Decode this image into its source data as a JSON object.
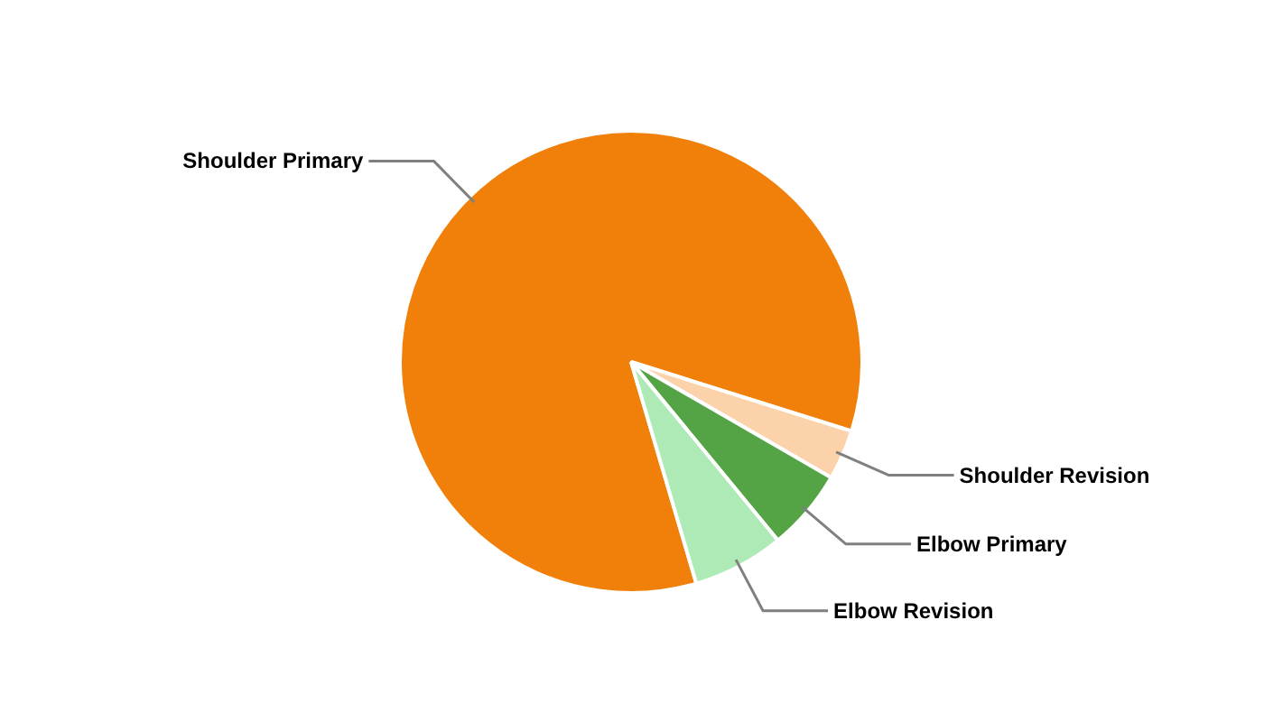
{
  "chart_data": {
    "type": "pie",
    "categories": [
      "Shoulder Primary",
      "Shoulder Revision",
      "Elbow Primary",
      "Elbow Revision"
    ],
    "values": [
      84.4,
      3.5,
      5.7,
      6.4
    ],
    "colors": [
      "#f0800a",
      "#fcd2aa",
      "#54a446",
      "#aeeab5"
    ]
  }
}
